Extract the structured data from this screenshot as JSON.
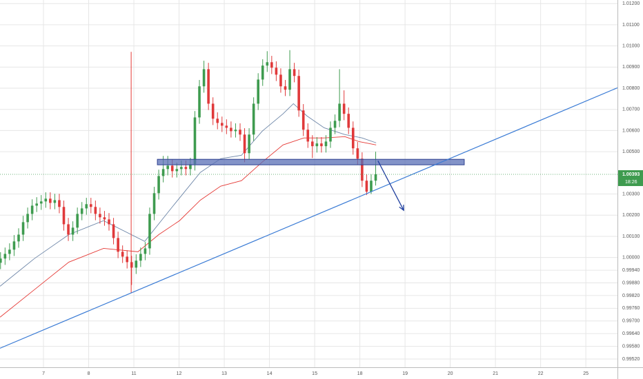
{
  "chart_data": {
    "type": "candlestick",
    "xlim": [
      -0.962,
      12.7
    ],
    "ylim": [
      0.99481,
      1.01217
    ],
    "xticks": [
      {
        "value": 0,
        "label": "7"
      },
      {
        "value": 1,
        "label": "8"
      },
      {
        "value": 2,
        "label": "11"
      },
      {
        "value": 3,
        "label": "12"
      },
      {
        "value": 4,
        "label": "13"
      },
      {
        "value": 5,
        "label": "14"
      },
      {
        "value": 6,
        "label": "15"
      },
      {
        "value": 7,
        "label": "18"
      },
      {
        "value": 8,
        "label": "19"
      },
      {
        "value": 9,
        "label": "20"
      },
      {
        "value": 10,
        "label": "21"
      },
      {
        "value": 11,
        "label": "22"
      },
      {
        "value": 12,
        "label": "25"
      }
    ],
    "yticks": [
      {
        "value": 1.012,
        "label": "1.01200"
      },
      {
        "value": 1.011,
        "label": "1.01100"
      },
      {
        "value": 1.01,
        "label": "1.01000"
      },
      {
        "value": 1.009,
        "label": "1.00900"
      },
      {
        "value": 1.008,
        "label": "1.00800"
      },
      {
        "value": 1.007,
        "label": "1.00700"
      },
      {
        "value": 1.006,
        "label": "1.00600"
      },
      {
        "value": 1.005,
        "label": "1.00500"
      },
      {
        "value": 1.003,
        "label": "1.00300"
      },
      {
        "value": 1.002,
        "label": "1.00200"
      },
      {
        "value": 1.001,
        "label": "1.00100"
      },
      {
        "value": 1,
        "label": "1.00000"
      },
      {
        "value": 0.9994,
        "label": "0.99940"
      },
      {
        "value": 0.9988,
        "label": "0.99880"
      },
      {
        "value": 0.9982,
        "label": "0.99820"
      },
      {
        "value": 0.9976,
        "label": "0.99760"
      },
      {
        "value": 0.997,
        "label": "0.99700"
      },
      {
        "value": 0.9964,
        "label": "0.99640"
      },
      {
        "value": 0.9958,
        "label": "0.99580"
      },
      {
        "value": 0.9952,
        "label": "0.99520"
      }
    ],
    "grid": true,
    "up_color": "#3e9b4f",
    "down_color": "#e0393a",
    "x": [
      -0.95,
      -0.85,
      -0.75,
      -0.65,
      -0.55,
      -0.45,
      -0.35,
      -0.25,
      -0.15,
      -0.05,
      0.05,
      0.15,
      0.25,
      0.35,
      0.45,
      0.55,
      0.65,
      0.75,
      0.85,
      0.95,
      1.05,
      1.15,
      1.25,
      1.35,
      1.45,
      1.55,
      1.65,
      1.75,
      1.85,
      1.95,
      2.05,
      2.15,
      2.25,
      2.35,
      2.45,
      2.55,
      2.65,
      2.75,
      2.85,
      2.95,
      3.05,
      3.15,
      3.25,
      3.35,
      3.45,
      3.55,
      3.65,
      3.75,
      3.85,
      3.95,
      4.05,
      4.15,
      4.25,
      4.35,
      4.45,
      4.55,
      4.65,
      4.75,
      4.85,
      4.95,
      5.05,
      5.15,
      5.25,
      5.35,
      5.45,
      5.55,
      5.65,
      5.75,
      5.85,
      5.95,
      6.05,
      6.15,
      6.25,
      6.35,
      6.45,
      6.55,
      6.65,
      6.75,
      6.85,
      6.95,
      7.05,
      7.15,
      7.25,
      7.35
    ],
    "open": [
      0.99975,
      0.99995,
      1.00017,
      1.00037,
      1.00076,
      1.00108,
      1.00167,
      1.00206,
      1.00245,
      1.00255,
      1.00265,
      1.00278,
      1.00258,
      1.00271,
      1.00239,
      1.00157,
      1.00108,
      1.00141,
      1.00206,
      1.00232,
      1.00252,
      1.00239,
      1.00206,
      1.0019,
      1.0018,
      1.00157,
      1.00092,
      1.00027,
      1.00004,
      0.99978,
      0.99952,
      0.99985,
      1.00017,
      1.00043,
      1.00206,
      1.00304,
      1.00385,
      1.00418,
      1.00434,
      1.00408,
      1.00418,
      1.00428,
      1.00418,
      1.00441,
      1.00662,
      1.00809,
      1.0089,
      1.00727,
      1.00656,
      1.00636,
      1.00623,
      1.00613,
      1.00597,
      1.00604,
      1.00581,
      1.00493,
      1.00581,
      1.00727,
      1.00841,
      1.00907,
      1.00923,
      1.00897,
      1.00864,
      1.00809,
      1.00793,
      1.0089,
      1.00858,
      1.00695,
      1.00604,
      1.00548,
      1.00526,
      1.00539,
      1.00526,
      1.00548,
      1.00613,
      1.00646,
      1.00727,
      1.00679,
      1.00613,
      1.00516,
      1.00467,
      1.00363,
      1.00311,
      1.00363
    ],
    "high": [
      1.00025,
      1.00047,
      1.00067,
      1.00106,
      1.00138,
      1.00197,
      1.00236,
      1.00275,
      1.00285,
      1.00295,
      1.00308,
      1.00308,
      1.00301,
      1.00301,
      1.00269,
      1.00187,
      1.00171,
      1.00236,
      1.00262,
      1.00282,
      1.00282,
      1.00269,
      1.00236,
      1.0022,
      1.0021,
      1.00187,
      1.00122,
      1.00057,
      1.00034,
      1.00008,
      1.00015,
      1.00047,
      1.00073,
      1.00236,
      1.00334,
      1.00415,
      1.0048,
      1.0048,
      1.00464,
      1.00448,
      1.00458,
      1.00458,
      1.00471,
      1.00692,
      1.00839,
      1.0093,
      1.0092,
      1.00757,
      1.00686,
      1.00666,
      1.00653,
      1.00643,
      1.00634,
      1.00634,
      1.00611,
      1.00611,
      1.00757,
      1.00871,
      1.00937,
      1.00975,
      1.00953,
      1.00927,
      1.00894,
      1.00839,
      1.0098,
      1.0092,
      1.00888,
      1.00725,
      1.00634,
      1.00578,
      1.00569,
      1.00569,
      1.00578,
      1.00643,
      1.00676,
      1.0089,
      1.0079,
      1.00709,
      1.00643,
      1.00546,
      1.00497,
      1.00393,
      1.00393,
      1.005
    ],
    "low": [
      0.99945,
      0.99965,
      0.99987,
      1.00007,
      1.00046,
      1.00078,
      1.00137,
      1.00176,
      1.00215,
      1.00225,
      1.00235,
      1.00228,
      1.00228,
      1.00209,
      1.00127,
      1.00078,
      1.00078,
      1.00111,
      1.00176,
      1.00202,
      1.00209,
      1.00176,
      1.0016,
      1.0015,
      1.00127,
      1.00062,
      0.99997,
      0.99974,
      0.99948,
      0.9987,
      0.99922,
      0.99955,
      0.99987,
      1.00013,
      1.00176,
      1.00274,
      1.00355,
      1.00388,
      1.00378,
      1.00378,
      1.00388,
      1.00388,
      1.00388,
      1.00411,
      1.00632,
      1.00779,
      1.00697,
      1.00626,
      1.00606,
      1.00593,
      1.00583,
      1.00567,
      1.00567,
      1.00551,
      1.0045,
      1.00463,
      1.00551,
      1.00697,
      1.00811,
      1.00877,
      1.00867,
      1.00834,
      1.00779,
      1.00763,
      1.00763,
      1.00828,
      1.00665,
      1.00574,
      1.00518,
      1.0047,
      1.00496,
      1.00496,
      1.00496,
      1.00518,
      1.00583,
      1.00616,
      1.00649,
      1.00583,
      1.00486,
      1.00437,
      1.00333,
      1.00295,
      1.003,
      1.0034
    ],
    "close": [
      0.99995,
      1.00017,
      1.00037,
      1.00076,
      1.00108,
      1.00167,
      1.00206,
      1.00245,
      1.00255,
      1.00265,
      1.00278,
      1.00258,
      1.00271,
      1.00239,
      1.00157,
      1.00108,
      1.00141,
      1.00206,
      1.00232,
      1.00252,
      1.00239,
      1.00206,
      1.0019,
      1.0018,
      1.00157,
      1.00092,
      1.00027,
      1.00004,
      0.99978,
      0.99952,
      0.99985,
      1.00017,
      1.00043,
      1.00206,
      1.00304,
      1.00385,
      1.00418,
      1.00434,
      1.00408,
      1.00418,
      1.00428,
      1.00418,
      1.00441,
      1.00662,
      1.00809,
      1.0089,
      1.00727,
      1.00656,
      1.00636,
      1.00623,
      1.00613,
      1.00597,
      1.00604,
      1.00581,
      1.00493,
      1.00581,
      1.00727,
      1.00841,
      1.00907,
      1.00923,
      1.00897,
      1.00864,
      1.00809,
      1.00793,
      1.0089,
      1.00858,
      1.00695,
      1.00604,
      1.00548,
      1.00526,
      1.00539,
      1.00526,
      1.00548,
      1.00613,
      1.00646,
      1.00727,
      1.00679,
      1.00613,
      1.00516,
      1.00467,
      1.00363,
      1.00311,
      1.00363,
      1.00393
    ],
    "series": [
      {
        "color": "#e53935",
        "x": [
          -0.96,
          -0.2,
          0.56,
          1.33,
          2.09,
          2.55,
          3.01,
          3.47,
          3.92,
          4.38,
          4.84,
          5.3,
          5.76,
          6.21,
          6.67,
          6.98,
          7.36
        ],
        "values": [
          0.99718,
          0.99848,
          0.99978,
          1.00043,
          1.00027,
          1.00108,
          1.00174,
          1.00271,
          1.00337,
          1.00363,
          1.00451,
          1.00532,
          1.00565,
          1.00565,
          1.00571,
          1.00548,
          1.00532
        ]
      },
      {
        "color": "#6d86a8",
        "x": [
          -0.96,
          -0.2,
          0.56,
          1.33,
          2.24,
          2.85,
          3.47,
          3.92,
          4.38,
          4.84,
          5.3,
          5.53,
          5.83,
          6.21,
          6.67,
          7.05,
          7.36
        ],
        "values": [
          0.99864,
          0.99995,
          1.00108,
          1.00174,
          1.00076,
          1.00239,
          1.00402,
          1.00467,
          1.00483,
          1.00597,
          1.00679,
          1.00727,
          1.00669,
          1.00613,
          1.00581,
          1.00565,
          1.00542
        ]
      }
    ],
    "trendline": {
      "color": "#3a7bd5",
      "x": [
        -0.962,
        12.7
      ],
      "y": [
        0.99571,
        1.00802
      ]
    },
    "zone": {
      "color": "#5a6fb5",
      "x": [
        2.52,
        9.31
      ],
      "y": [
        1.00438,
        1.00464
      ]
    },
    "marker_line": {
      "color": "#e53935",
      "x": 1.94,
      "y": [
        0.99832,
        1.00972
      ]
    },
    "arrow": {
      "color": "#1f3f9e",
      "x": [
        7.4,
        7.97
      ],
      "y": [
        1.00457,
        1.00223
      ]
    },
    "last_price": 1.00393,
    "countdown": "18:26"
  }
}
